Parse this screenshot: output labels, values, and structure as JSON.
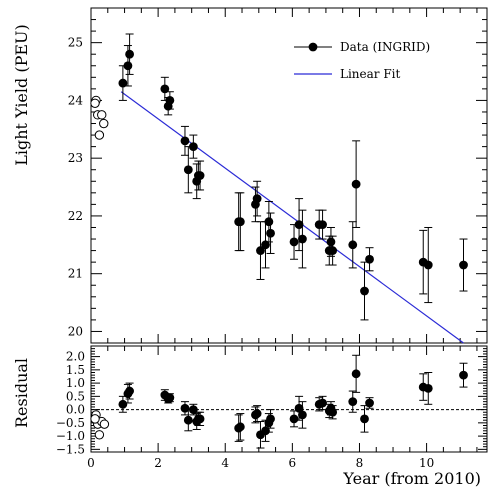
{
  "chart_data": [
    {
      "type": "scatter",
      "ylabel": "Light Yield (PEU)",
      "xlim": [
        0,
        11.8
      ],
      "ylim": [
        19.8,
        25.6
      ],
      "yticks": [
        20,
        21,
        22,
        23,
        24,
        25
      ],
      "legend": {
        "position": "top-right",
        "data_label": "Data (INGRID)",
        "fit_label": "Linear Fit"
      },
      "fit": {
        "x0": 0.9,
        "y0": 24.15,
        "x1": 11.1,
        "y1": 19.8,
        "color": "#2b2bd6"
      },
      "open_points": [
        {
          "x": 0.15,
          "y": 24.0
        },
        {
          "x": 0.2,
          "y": 23.75
        },
        {
          "x": 0.25,
          "y": 23.4
        },
        {
          "x": 0.32,
          "y": 23.75
        },
        {
          "x": 0.38,
          "y": 23.6
        },
        {
          "x": 0.12,
          "y": 23.95
        }
      ],
      "series": [
        {
          "name": "Data (INGRID)",
          "points": [
            {
              "x": 0.95,
              "y": 24.3,
              "err": 0.3
            },
            {
              "x": 1.1,
              "y": 24.6,
              "err": 0.35
            },
            {
              "x": 1.15,
              "y": 24.8,
              "err": 0.35
            },
            {
              "x": 2.2,
              "y": 24.2,
              "err": 0.2
            },
            {
              "x": 2.3,
              "y": 23.9,
              "err": 0.15
            },
            {
              "x": 2.35,
              "y": 24.0,
              "err": 0.15
            },
            {
              "x": 2.8,
              "y": 23.3,
              "err": 0.25
            },
            {
              "x": 2.9,
              "y": 22.8,
              "err": 0.4
            },
            {
              "x": 3.05,
              "y": 23.2,
              "err": 0.2
            },
            {
              "x": 3.15,
              "y": 22.6,
              "err": 0.3
            },
            {
              "x": 3.2,
              "y": 22.7,
              "err": 0.25
            },
            {
              "x": 3.25,
              "y": 22.7,
              "err": 0.25
            },
            {
              "x": 4.4,
              "y": 21.9,
              "err": 0.5
            },
            {
              "x": 4.45,
              "y": 21.9,
              "err": 0.5
            },
            {
              "x": 4.9,
              "y": 22.2,
              "err": 0.3
            },
            {
              "x": 4.95,
              "y": 22.3,
              "err": 0.3
            },
            {
              "x": 5.05,
              "y": 21.4,
              "err": 0.5
            },
            {
              "x": 5.2,
              "y": 21.5,
              "err": 0.4
            },
            {
              "x": 5.3,
              "y": 21.9,
              "err": 0.35
            },
            {
              "x": 5.35,
              "y": 21.7,
              "err": 0.35
            },
            {
              "x": 6.05,
              "y": 21.55,
              "err": 0.3
            },
            {
              "x": 6.2,
              "y": 21.85,
              "err": 0.45
            },
            {
              "x": 6.3,
              "y": 21.6,
              "err": 0.5
            },
            {
              "x": 6.8,
              "y": 21.85,
              "err": 0.25
            },
            {
              "x": 6.9,
              "y": 21.85,
              "err": 0.25
            },
            {
              "x": 7.1,
              "y": 21.4,
              "err": 0.25
            },
            {
              "x": 7.15,
              "y": 21.55,
              "err": 0.25
            },
            {
              "x": 7.2,
              "y": 21.4,
              "err": 0.25
            },
            {
              "x": 7.8,
              "y": 21.5,
              "err": 0.4
            },
            {
              "x": 7.9,
              "y": 22.55,
              "err": 0.75
            },
            {
              "x": 8.15,
              "y": 20.7,
              "err": 0.5
            },
            {
              "x": 8.3,
              "y": 21.25,
              "err": 0.2
            },
            {
              "x": 9.9,
              "y": 21.2,
              "err": 0.55
            },
            {
              "x": 10.05,
              "y": 21.15,
              "err": 0.65
            },
            {
              "x": 11.1,
              "y": 21.15,
              "err": 0.45
            }
          ]
        }
      ]
    },
    {
      "type": "scatter",
      "ylabel": "Residual",
      "xlabel": "Year (from 2010)",
      "xlim": [
        0,
        11.8
      ],
      "ylim": [
        -1.6,
        2.4
      ],
      "yticks": [
        -1.5,
        -1.0,
        -0.5,
        0.0,
        0.5,
        1.0,
        1.5,
        2.0
      ],
      "ytick_labels": [
        "−1.5",
        "−1.0",
        "−0.5",
        "0.0",
        "0.5",
        "1.0",
        "1.5",
        "2.0"
      ],
      "xticks": [
        0,
        2,
        4,
        6,
        8,
        10
      ],
      "zero_line": 0,
      "open_points": [
        {
          "x": 0.15,
          "y": -0.2
        },
        {
          "x": 0.2,
          "y": -0.55
        },
        {
          "x": 0.25,
          "y": -0.95
        },
        {
          "x": 0.32,
          "y": -0.45
        },
        {
          "x": 0.4,
          "y": -0.55
        },
        {
          "x": 0.12,
          "y": -0.35
        }
      ],
      "series": [
        {
          "name": "Residual",
          "points": [
            {
              "x": 0.95,
              "y": 0.2,
              "err": 0.3
            },
            {
              "x": 1.1,
              "y": 0.6,
              "err": 0.35
            },
            {
              "x": 1.15,
              "y": 0.7,
              "err": 0.3
            },
            {
              "x": 2.2,
              "y": 0.55,
              "err": 0.2
            },
            {
              "x": 2.3,
              "y": 0.4,
              "err": 0.15
            },
            {
              "x": 2.35,
              "y": 0.45,
              "err": 0.15
            },
            {
              "x": 2.8,
              "y": 0.05,
              "err": 0.25
            },
            {
              "x": 2.9,
              "y": -0.4,
              "err": 0.4
            },
            {
              "x": 3.05,
              "y": 0.0,
              "err": 0.2
            },
            {
              "x": 3.15,
              "y": -0.45,
              "err": 0.3
            },
            {
              "x": 3.2,
              "y": -0.35,
              "err": 0.25
            },
            {
              "x": 3.25,
              "y": -0.35,
              "err": 0.25
            },
            {
              "x": 4.4,
              "y": -0.7,
              "err": 0.5
            },
            {
              "x": 4.45,
              "y": -0.65,
              "err": 0.5
            },
            {
              "x": 4.9,
              "y": -0.2,
              "err": 0.3
            },
            {
              "x": 4.95,
              "y": -0.15,
              "err": 0.3
            },
            {
              "x": 5.05,
              "y": -0.95,
              "err": 0.5
            },
            {
              "x": 5.2,
              "y": -0.8,
              "err": 0.4
            },
            {
              "x": 5.3,
              "y": -0.5,
              "err": 0.35
            },
            {
              "x": 5.35,
              "y": -0.35,
              "err": 0.35
            },
            {
              "x": 6.05,
              "y": -0.35,
              "err": 0.3
            },
            {
              "x": 6.2,
              "y": 0.05,
              "err": 0.45
            },
            {
              "x": 6.3,
              "y": -0.2,
              "err": 0.5
            },
            {
              "x": 6.8,
              "y": 0.2,
              "err": 0.25
            },
            {
              "x": 6.9,
              "y": 0.25,
              "err": 0.25
            },
            {
              "x": 7.1,
              "y": -0.05,
              "err": 0.25
            },
            {
              "x": 7.15,
              "y": 0.05,
              "err": 0.25
            },
            {
              "x": 7.2,
              "y": -0.1,
              "err": 0.25
            },
            {
              "x": 7.8,
              "y": 0.3,
              "err": 0.4
            },
            {
              "x": 7.9,
              "y": 1.35,
              "err": 0.7
            },
            {
              "x": 8.15,
              "y": -0.35,
              "err": 0.5
            },
            {
              "x": 8.3,
              "y": 0.25,
              "err": 0.2
            },
            {
              "x": 9.9,
              "y": 0.85,
              "err": 0.5
            },
            {
              "x": 10.05,
              "y": 0.8,
              "err": 0.6
            },
            {
              "x": 11.1,
              "y": 1.3,
              "err": 0.45
            }
          ]
        }
      ]
    }
  ]
}
